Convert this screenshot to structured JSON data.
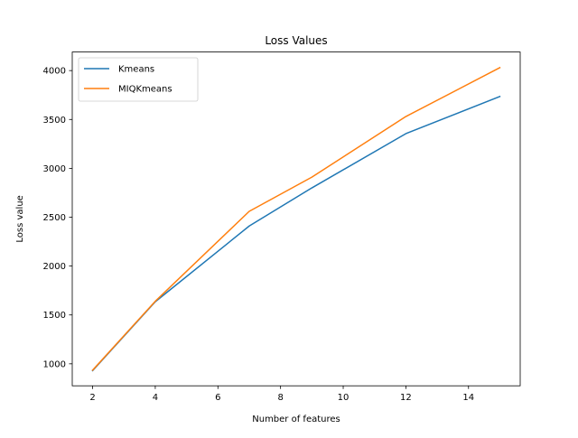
{
  "chart_data": {
    "type": "line",
    "title": "Loss Values",
    "xlabel": "Number of features",
    "ylabel": "Loss value",
    "x": [
      2,
      4,
      7,
      9,
      12,
      15
    ],
    "series": [
      {
        "name": "Kmeans",
        "color": "#1f77b4",
        "values": [
          930,
          1635,
          2410,
          2800,
          3355,
          3735
        ]
      },
      {
        "name": "MIQKmeans",
        "color": "#ff7f0e",
        "values": [
          935,
          1640,
          2560,
          2910,
          3530,
          4030
        ]
      }
    ],
    "xlim": [
      1.35,
      15.65
    ],
    "ylim": [
      775,
      4190
    ],
    "xticks": [
      2,
      4,
      6,
      8,
      10,
      12,
      14
    ],
    "yticks": [
      1000,
      1500,
      2000,
      2500,
      3000,
      3500,
      4000
    ],
    "grid": false,
    "legend_position": "top-left"
  }
}
